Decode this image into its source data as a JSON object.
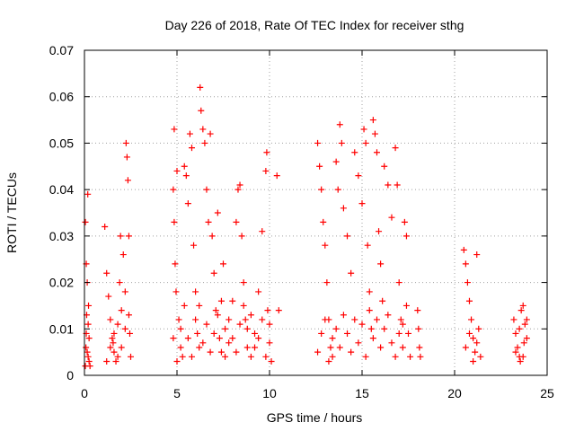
{
  "chart_data": {
    "type": "scatter",
    "title": "Day 226 of 2018, Rate Of TEC Index for receiver sthg",
    "xlabel": "GPS time / hours",
    "ylabel": "ROTI / TECUs",
    "xlim": [
      0,
      25
    ],
    "ylim": [
      0,
      0.07
    ],
    "x_ticks": [
      0,
      5,
      10,
      15,
      20,
      25
    ],
    "y_ticks": [
      0,
      0.01,
      0.02,
      0.03,
      0.04,
      0.05,
      0.06,
      0.07
    ],
    "x_tick_labels": [
      "0",
      "5",
      "10",
      "15",
      "20",
      "25"
    ],
    "y_tick_labels": [
      "0",
      "0.01",
      "0.02",
      "0.03",
      "0.04",
      "0.05",
      "0.06",
      "0.07"
    ],
    "grid": true,
    "marker": "+",
    "marker_color": "#ff0000",
    "series": [
      {
        "name": "ROTI",
        "points": [
          [
            0.05,
            0.033
          ],
          [
            0.1,
            0.024
          ],
          [
            0.15,
            0.02
          ],
          [
            0.12,
            0.013
          ],
          [
            0.08,
            0.006
          ],
          [
            0.2,
            0.004
          ],
          [
            0.25,
            0.008
          ],
          [
            0.18,
            0.039
          ],
          [
            0.3,
            0.002
          ],
          [
            0.22,
            0.015
          ],
          [
            1.1,
            0.032
          ],
          [
            1.2,
            0.022
          ],
          [
            1.3,
            0.017
          ],
          [
            1.4,
            0.012
          ],
          [
            1.5,
            0.008
          ],
          [
            1.6,
            0.005
          ],
          [
            1.7,
            0.003
          ],
          [
            1.8,
            0.011
          ],
          [
            1.9,
            0.02
          ],
          [
            2.0,
            0.014
          ],
          [
            2.1,
            0.026
          ],
          [
            2.2,
            0.018
          ],
          [
            2.25,
            0.05
          ],
          [
            2.3,
            0.047
          ],
          [
            2.35,
            0.042
          ],
          [
            2.4,
            0.03
          ],
          [
            2.45,
            0.009
          ],
          [
            2.5,
            0.004
          ],
          [
            1.95,
            0.03
          ],
          [
            1.55,
            0.007
          ],
          [
            4.8,
            0.04
          ],
          [
            4.85,
            0.033
          ],
          [
            4.9,
            0.024
          ],
          [
            4.95,
            0.018
          ],
          [
            5.0,
            0.044
          ],
          [
            4.85,
            0.053
          ],
          [
            5.1,
            0.012
          ],
          [
            5.2,
            0.006
          ],
          [
            5.3,
            0.004
          ],
          [
            5.4,
            0.045
          ],
          [
            5.5,
            0.043
          ],
          [
            5.6,
            0.037
          ],
          [
            5.7,
            0.052
          ],
          [
            5.8,
            0.049
          ],
          [
            5.9,
            0.028
          ],
          [
            6.0,
            0.018
          ],
          [
            6.1,
            0.009
          ],
          [
            6.2,
            0.006
          ],
          [
            6.25,
            0.062
          ],
          [
            6.3,
            0.057
          ],
          [
            6.4,
            0.053
          ],
          [
            6.5,
            0.05
          ],
          [
            6.6,
            0.04
          ],
          [
            6.7,
            0.033
          ],
          [
            6.8,
            0.052
          ],
          [
            6.9,
            0.03
          ],
          [
            7.0,
            0.022
          ],
          [
            7.1,
            0.014
          ],
          [
            7.2,
            0.035
          ],
          [
            7.3,
            0.008
          ],
          [
            7.4,
            0.005
          ],
          [
            7.5,
            0.024
          ],
          [
            7.6,
            0.01
          ],
          [
            7.8,
            0.007
          ],
          [
            8.0,
            0.016
          ],
          [
            8.2,
            0.033
          ],
          [
            8.3,
            0.04
          ],
          [
            8.4,
            0.041
          ],
          [
            8.5,
            0.03
          ],
          [
            8.6,
            0.02
          ],
          [
            8.7,
            0.012
          ],
          [
            8.8,
            0.006
          ],
          [
            9.0,
            0.004
          ],
          [
            9.2,
            0.009
          ],
          [
            9.4,
            0.018
          ],
          [
            9.6,
            0.031
          ],
          [
            9.8,
            0.044
          ],
          [
            9.85,
            0.048
          ],
          [
            9.9,
            0.014
          ],
          [
            10.0,
            0.007
          ],
          [
            10.1,
            0.003
          ],
          [
            10.4,
            0.043
          ],
          [
            10.5,
            0.014
          ],
          [
            12.6,
            0.05
          ],
          [
            12.7,
            0.045
          ],
          [
            12.8,
            0.04
          ],
          [
            12.9,
            0.033
          ],
          [
            13.0,
            0.028
          ],
          [
            13.1,
            0.02
          ],
          [
            13.2,
            0.012
          ],
          [
            13.3,
            0.006
          ],
          [
            13.4,
            0.004
          ],
          [
            13.6,
            0.046
          ],
          [
            13.7,
            0.04
          ],
          [
            13.8,
            0.054
          ],
          [
            13.9,
            0.05
          ],
          [
            14.0,
            0.036
          ],
          [
            14.2,
            0.03
          ],
          [
            14.4,
            0.022
          ],
          [
            14.6,
            0.048
          ],
          [
            14.8,
            0.043
          ],
          [
            15.0,
            0.037
          ],
          [
            15.1,
            0.053
          ],
          [
            15.2,
            0.05
          ],
          [
            15.3,
            0.028
          ],
          [
            15.4,
            0.018
          ],
          [
            15.5,
            0.01
          ],
          [
            15.6,
            0.055
          ],
          [
            15.7,
            0.052
          ],
          [
            15.8,
            0.048
          ],
          [
            15.9,
            0.031
          ],
          [
            16.0,
            0.024
          ],
          [
            16.1,
            0.016
          ],
          [
            16.2,
            0.045
          ],
          [
            16.4,
            0.041
          ],
          [
            16.6,
            0.034
          ],
          [
            16.8,
            0.049
          ],
          [
            16.9,
            0.041
          ],
          [
            17.0,
            0.02
          ],
          [
            17.1,
            0.012
          ],
          [
            17.2,
            0.006
          ],
          [
            17.3,
            0.033
          ],
          [
            17.4,
            0.03
          ],
          [
            17.5,
            0.009
          ],
          [
            17.6,
            0.004
          ],
          [
            18.0,
            0.014
          ],
          [
            18.05,
            0.01
          ],
          [
            18.1,
            0.006
          ],
          [
            18.15,
            0.004
          ],
          [
            20.5,
            0.027
          ],
          [
            20.6,
            0.024
          ],
          [
            20.7,
            0.02
          ],
          [
            20.8,
            0.016
          ],
          [
            20.9,
            0.012
          ],
          [
            21.0,
            0.008
          ],
          [
            21.1,
            0.005
          ],
          [
            21.2,
            0.026
          ],
          [
            21.3,
            0.01
          ],
          [
            21.4,
            0.004
          ],
          [
            23.2,
            0.012
          ],
          [
            23.3,
            0.009
          ],
          [
            23.4,
            0.006
          ],
          [
            23.5,
            0.004
          ],
          [
            23.6,
            0.014
          ],
          [
            23.7,
            0.015
          ],
          [
            23.8,
            0.011
          ],
          [
            23.9,
            0.008
          ],
          [
            23.55,
            0.003
          ],
          [
            23.75,
            0.007
          ],
          [
            0.05,
            0.002
          ],
          [
            0.15,
            0.005
          ],
          [
            0.1,
            0.009
          ],
          [
            0.25,
            0.003
          ],
          [
            0.2,
            0.011
          ],
          [
            1.2,
            0.003
          ],
          [
            1.4,
            0.006
          ],
          [
            1.6,
            0.009
          ],
          [
            1.8,
            0.004
          ],
          [
            2.0,
            0.006
          ],
          [
            2.2,
            0.01
          ],
          [
            2.4,
            0.013
          ],
          [
            4.8,
            0.008
          ],
          [
            5.0,
            0.003
          ],
          [
            5.2,
            0.01
          ],
          [
            5.4,
            0.015
          ],
          [
            5.6,
            0.008
          ],
          [
            5.8,
            0.004
          ],
          [
            6.0,
            0.012
          ],
          [
            6.2,
            0.015
          ],
          [
            6.4,
            0.007
          ],
          [
            6.6,
            0.011
          ],
          [
            6.8,
            0.005
          ],
          [
            7.0,
            0.009
          ],
          [
            7.2,
            0.013
          ],
          [
            7.4,
            0.016
          ],
          [
            7.6,
            0.004
          ],
          [
            7.8,
            0.012
          ],
          [
            8.0,
            0.008
          ],
          [
            8.2,
            0.005
          ],
          [
            8.4,
            0.011
          ],
          [
            8.6,
            0.015
          ],
          [
            8.8,
            0.01
          ],
          [
            9.0,
            0.013
          ],
          [
            9.2,
            0.006
          ],
          [
            9.4,
            0.008
          ],
          [
            9.6,
            0.012
          ],
          [
            9.8,
            0.004
          ],
          [
            10.0,
            0.011
          ],
          [
            12.6,
            0.005
          ],
          [
            12.8,
            0.009
          ],
          [
            13.0,
            0.012
          ],
          [
            13.2,
            0.003
          ],
          [
            13.4,
            0.008
          ],
          [
            13.6,
            0.01
          ],
          [
            13.8,
            0.006
          ],
          [
            14.0,
            0.013
          ],
          [
            14.2,
            0.009
          ],
          [
            14.4,
            0.005
          ],
          [
            14.6,
            0.012
          ],
          [
            14.8,
            0.007
          ],
          [
            15.0,
            0.011
          ],
          [
            15.2,
            0.004
          ],
          [
            15.4,
            0.014
          ],
          [
            15.6,
            0.008
          ],
          [
            15.8,
            0.012
          ],
          [
            16.0,
            0.006
          ],
          [
            16.2,
            0.01
          ],
          [
            16.4,
            0.013
          ],
          [
            16.6,
            0.007
          ],
          [
            16.8,
            0.004
          ],
          [
            17.0,
            0.009
          ],
          [
            17.2,
            0.011
          ],
          [
            17.4,
            0.015
          ],
          [
            20.6,
            0.006
          ],
          [
            20.8,
            0.009
          ],
          [
            21.0,
            0.003
          ],
          [
            21.2,
            0.007
          ],
          [
            23.3,
            0.005
          ],
          [
            23.5,
            0.01
          ],
          [
            23.7,
            0.004
          ],
          [
            23.9,
            0.012
          ]
        ]
      }
    ]
  }
}
